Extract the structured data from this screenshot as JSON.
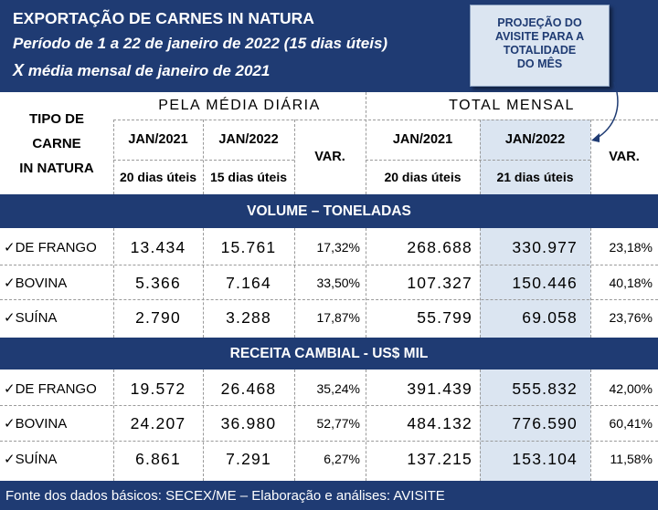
{
  "header": {
    "title": "EXPORTAÇÃO DE CARNES IN NATURA",
    "period": "Período de 1 a 22 de janeiro de 2022 (15 dias úteis)",
    "compare_prefix": "X",
    "compare": " média mensal de janeiro de 2021",
    "note_lines": [
      "PROJEÇÃO DO",
      "AVISITE PARA A",
      "TOTALIDADE",
      "DO MÊS"
    ]
  },
  "columns": {
    "tipo_lines": [
      "TIPO DE",
      "CARNE",
      "IN NATURA"
    ],
    "daily_group": "PELA MÉDIA DIÁRIA",
    "monthly_group": "TOTAL MENSAL",
    "jan2021": "JAN/2021",
    "jan2022": "JAN/2022",
    "var": "VAR.",
    "days_2021": "20 dias úteis",
    "days_2022_daily": "15 dias úteis",
    "days_2022_monthly": "21 dias úteis"
  },
  "sections": [
    {
      "title": "VOLUME – TONELADAS",
      "rows": [
        {
          "label": "✓DE FRANGO",
          "d2021": "13.434",
          "d2022": "15.761",
          "dvar": "17,32%",
          "m2021": "268.688",
          "m2022": "330.977",
          "mvar": "23,18%"
        },
        {
          "label": "✓BOVINA",
          "d2021": "5.366",
          "d2022": "7.164",
          "dvar": "33,50%",
          "m2021": "107.327",
          "m2022": "150.446",
          "mvar": "40,18%"
        },
        {
          "label": "✓SUÍNA",
          "d2021": "2.790",
          "d2022": "3.288",
          "dvar": "17,87%",
          "m2021": "55.799",
          "m2022": "69.058",
          "mvar": "23,76%"
        }
      ]
    },
    {
      "title": "RECEITA  CAMBIAL  - US$ MIL",
      "rows": [
        {
          "label": "✓DE FRANGO",
          "d2021": "19.572",
          "d2022": "26.468",
          "dvar": "35,24%",
          "m2021": "391.439",
          "m2022": "555.832",
          "mvar": "42,00%"
        },
        {
          "label": "✓BOVINA",
          "d2021": "24.207",
          "d2022": "36.980",
          "dvar": "52,77%",
          "m2021": "484.132",
          "m2022": "776.590",
          "mvar": "60,41%"
        },
        {
          "label": "✓SUÍNA",
          "d2021": "6.861",
          "d2022": "7.291",
          "dvar": "6,27%",
          "m2021": "137.215",
          "m2022": "153.104",
          "mvar": "11,58%"
        }
      ]
    }
  ],
  "footer": "Fonte dos dados básicos: SECEX/ME – Elaboração e análises: AVISITE",
  "colors": {
    "navy": "#1f3b73",
    "highlight": "#dbe5f1"
  }
}
